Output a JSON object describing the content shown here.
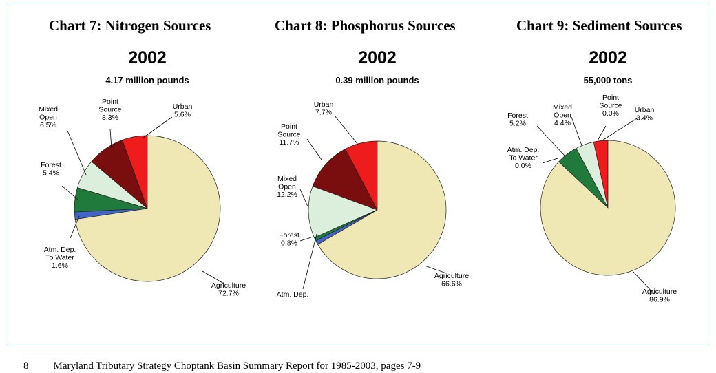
{
  "colors": {
    "Agriculture": "#efe8b4",
    "Atm. Dep. To Water": "#4266c8",
    "Forest": "#1f7a3c",
    "Mixed Open": "#dcefdc",
    "Point Source": "#7a0d0d",
    "Urban": "#ee1c1c",
    "frame": "#5b84c4"
  },
  "chart_data": [
    {
      "type": "pie",
      "title": "Chart 7:  Nitrogen Sources",
      "year": "2002",
      "subtitle": "4.17 million pounds",
      "slices": [
        {
          "name": "Agriculture",
          "value": 72.7,
          "label": [
            "Agriculture",
            "72.7%"
          ]
        },
        {
          "name": "Atm. Dep. To Water",
          "value": 1.6,
          "label": [
            "Atm. Dep.",
            "To Water",
            "1.6%"
          ]
        },
        {
          "name": "Forest",
          "value": 5.4,
          "label": [
            "Forest",
            "5.4%"
          ]
        },
        {
          "name": "Mixed Open",
          "value": 6.5,
          "label": [
            "Mixed",
            "Open",
            "6.5%"
          ]
        },
        {
          "name": "Point Source",
          "value": 8.3,
          "label": [
            "Point",
            "Source",
            "8.3%"
          ]
        },
        {
          "name": "Urban",
          "value": 5.6,
          "label": [
            "Urban",
            "5.6%"
          ]
        }
      ]
    },
    {
      "type": "pie",
      "title": "Chart 8:  Phosphorus Sources",
      "year": "2002",
      "subtitle": "0.39 million pounds",
      "slices": [
        {
          "name": "Agriculture",
          "value": 66.6,
          "label": [
            "Agriculture",
            "66.6%"
          ]
        },
        {
          "name": "Atm. Dep.",
          "value": 1.0,
          "label": [
            "Atm. Dep."
          ]
        },
        {
          "name": "Forest",
          "value": 0.8,
          "label": [
            "Forest",
            "0.8%"
          ]
        },
        {
          "name": "Mixed Open",
          "value": 12.2,
          "label": [
            "Mixed",
            "Open",
            "12.2%"
          ]
        },
        {
          "name": "Point Source",
          "value": 11.7,
          "label": [
            "Point",
            "Source",
            "11.7%"
          ]
        },
        {
          "name": "Urban",
          "value": 7.7,
          "label": [
            "Urban",
            "7.7%"
          ]
        }
      ]
    },
    {
      "type": "pie",
      "title": "Chart 9:  Sediment Sources",
      "year": "2002",
      "subtitle": "55,000 tons",
      "slices": [
        {
          "name": "Agriculture",
          "value": 86.9,
          "label": [
            "Agriculture",
            "86.9%"
          ]
        },
        {
          "name": "Atm. Dep. To Water",
          "value": 0.0,
          "label": [
            "Atm. Dep.",
            "To Water",
            "0.0%"
          ]
        },
        {
          "name": "Forest",
          "value": 5.2,
          "label": [
            "Forest",
            "5.2%"
          ]
        },
        {
          "name": "Mixed Open",
          "value": 4.4,
          "label": [
            "Mixed",
            "Open",
            "4.4%"
          ]
        },
        {
          "name": "Point Source",
          "value": 0.0,
          "label": [
            "Point",
            "Source",
            "0.0%"
          ]
        },
        {
          "name": "Urban",
          "value": 3.4,
          "label": [
            "Urban",
            "3.4%"
          ]
        }
      ]
    }
  ],
  "footnote": {
    "number": "8",
    "text": "Maryland Tributary Strategy Choptank Basin Summary Report for 1985-2003, pages 7-9"
  }
}
